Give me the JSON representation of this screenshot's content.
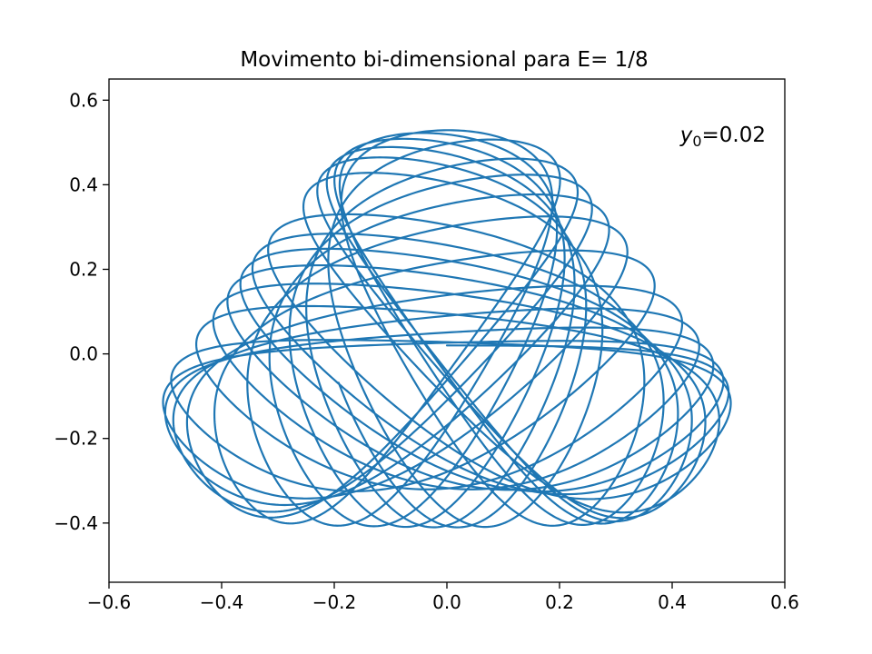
{
  "chart_data": {
    "type": "line",
    "title": "Movimento bi-dimensional para E= 1/8",
    "xlabel": "",
    "ylabel": "",
    "xlim": [
      -0.6,
      0.6
    ],
    "ylim": [
      -0.54,
      0.65
    ],
    "x_ticks": [
      -0.6,
      -0.4,
      -0.2,
      0.0,
      0.2,
      0.4,
      0.6
    ],
    "x_tick_labels": [
      "−0.6",
      "−0.4",
      "−0.2",
      "0.0",
      "0.2",
      "0.4",
      "0.6"
    ],
    "y_ticks": [
      -0.4,
      -0.2,
      0.0,
      0.2,
      0.4,
      0.6
    ],
    "y_tick_labels": [
      "−0.4",
      "−0.2",
      "0.0",
      "0.2",
      "0.4",
      "0.6"
    ],
    "grid": false,
    "annotation": {
      "text_prefix": "y",
      "subscript": "0",
      "text_suffix": "=0.02",
      "position": "top-right"
    },
    "series": [
      {
        "color": "#1f77b4",
        "description_points": {
          "x_range": [
            -0.527,
            0.527
          ],
          "y_range": [
            -0.415,
            0.57
          ],
          "key_points": [
            {
              "x": 0.0,
              "y": 0.57
            },
            {
              "x": 0.52,
              "y": -0.2
            },
            {
              "x": -0.52,
              "y": -0.2
            },
            {
              "x": 0.18,
              "y": -0.415
            },
            {
              "x": -0.18,
              "y": -0.415
            },
            {
              "x": 0.0,
              "y": -0.29
            }
          ]
        }
      }
    ]
  }
}
